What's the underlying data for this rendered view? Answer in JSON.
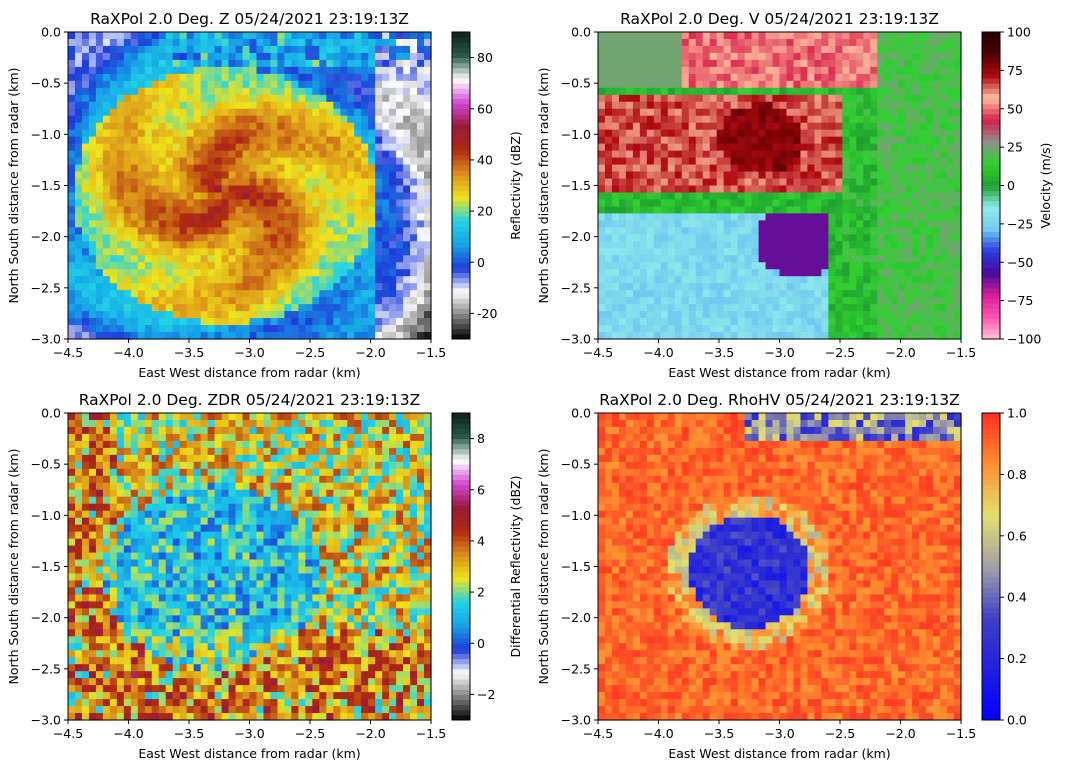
{
  "panels": [
    {
      "id": "z",
      "title": "RaXPol 2.0 Deg. Z 05/24/2021 23:19:13Z",
      "xlabel": "East West distance from radar (km)",
      "ylabel": "North South distance from radar (km)",
      "cbar_label": "Reflectivity (dBZ)",
      "cbar_range": [
        -30,
        90
      ],
      "cbar_ticks": [
        "-20",
        "0",
        "20",
        "40",
        "60",
        "80"
      ],
      "cbar_tick_values": [
        -20,
        0,
        20,
        40,
        60,
        80
      ],
      "colormap": [
        "#000000",
        "#808080",
        "#ffffff",
        "#1e3ad8",
        "#16a3e6",
        "#21d3e6",
        "#f0e31a",
        "#d9901a",
        "#b02a10",
        "#9a1a3c",
        "#d046d0",
        "#ffffff",
        "#2a5a4a",
        "#10201a"
      ]
    },
    {
      "id": "v",
      "title": "RaXPol 2.0 Deg. V 05/24/2021 23:19:13Z",
      "xlabel": "East West distance from radar (km)",
      "ylabel": "North South distance from radar (km)",
      "cbar_label": "Velocity (m/s)",
      "cbar_range": [
        -100,
        100
      ],
      "cbar_ticks": [
        "−100",
        "−75",
        "−50",
        "−25",
        "0",
        "25",
        "50",
        "75",
        "100"
      ],
      "cbar_tick_values": [
        -100,
        -75,
        -50,
        -25,
        0,
        25,
        50,
        75,
        100
      ],
      "colormap": [
        "#ffc6d8",
        "#ff56b0",
        "#d81e9a",
        "#4a0a9a",
        "#2a3ae0",
        "#6ec8f0",
        "#90ecea",
        "#20a030",
        "#30d030",
        "#909090",
        "#d8204a",
        "#ffc0a0",
        "#b00a10",
        "#500000",
        "#200000"
      ]
    },
    {
      "id": "zdr",
      "title": "RaXPol 2.0 Deg. ZDR 05/24/2021 23:19:13Z",
      "xlabel": "East West distance from radar (km)",
      "ylabel": "North South distance from radar (km)",
      "cbar_label": "Differential Reflectivity (dBZ)",
      "cbar_range": [
        -3,
        9
      ],
      "cbar_ticks": [
        "−2",
        "0",
        "2",
        "4",
        "6",
        "8"
      ],
      "cbar_tick_values": [
        -2,
        0,
        2,
        4,
        6,
        8
      ],
      "colormap": [
        "#000000",
        "#808080",
        "#ffffff",
        "#1e3ad8",
        "#16a3e6",
        "#21d3e6",
        "#f0e31a",
        "#d9901a",
        "#b02a10",
        "#9a1a3c",
        "#d046d0",
        "#ffffff",
        "#2a5a4a",
        "#10201a"
      ]
    },
    {
      "id": "rhohv",
      "title": "RaXPol 2.0 Deg. RhoHV 05/24/2021 23:19:13Z",
      "xlabel": "East West distance from radar (km)",
      "ylabel": "North South distance from radar (km)",
      "cbar_label": "",
      "cbar_range": [
        0,
        1
      ],
      "cbar_ticks": [
        "0.0",
        "0.2",
        "0.4",
        "0.6",
        "0.8",
        "1.0"
      ],
      "cbar_tick_values": [
        0,
        0.2,
        0.4,
        0.6,
        0.8,
        1.0
      ],
      "colormap": [
        "#0000ff",
        "#2020e0",
        "#4040c8",
        "#a0a0a8",
        "#e0e070",
        "#ff9030",
        "#ff3020"
      ]
    }
  ],
  "chart_data": [
    {
      "type": "heatmap",
      "title": "RaXPol 2.0 Deg. Z 05/24/2021 23:19:13Z",
      "xlabel": "East West distance from radar (km)",
      "ylabel": "North South distance from radar (km)",
      "xlim": [
        -4.5,
        -1.5
      ],
      "ylim": [
        -3.0,
        0.0
      ],
      "xticks": [
        "−4.5",
        "−4.0",
        "−3.5",
        "−3.0",
        "−2.5",
        "−2.0",
        "−1.5"
      ],
      "xtick_values": [
        -4.5,
        -4.0,
        -3.5,
        -3.0,
        -2.5,
        -2.0,
        -1.5
      ],
      "yticks": [
        "0.0",
        "−0.5",
        "−1.0",
        "−1.5",
        "−2.0",
        "−2.5",
        "−3.0"
      ],
      "ytick_values": [
        0.0,
        -0.5,
        -1.0,
        -1.5,
        -2.0,
        -2.5,
        -3.0
      ],
      "colorbar": {
        "label": "Reflectivity (dBZ)",
        "range": [
          -30,
          90
        ]
      }
    },
    {
      "type": "heatmap",
      "title": "RaXPol 2.0 Deg. V 05/24/2021 23:19:13Z",
      "xlabel": "East West distance from radar (km)",
      "ylabel": "North South distance from radar (km)",
      "xlim": [
        -4.5,
        -1.5
      ],
      "ylim": [
        -3.0,
        0.0
      ],
      "xticks": [
        "−4.5",
        "−4.0",
        "−3.5",
        "−3.0",
        "−2.5",
        "−2.0",
        "−1.5"
      ],
      "xtick_values": [
        -4.5,
        -4.0,
        -3.5,
        -3.0,
        -2.5,
        -2.0,
        -1.5
      ],
      "yticks": [
        "0.0",
        "−0.5",
        "−1.0",
        "−1.5",
        "−2.0",
        "−2.5",
        "−3.0"
      ],
      "ytick_values": [
        0.0,
        -0.5,
        -1.0,
        -1.5,
        -2.0,
        -2.5,
        -3.0
      ],
      "colorbar": {
        "label": "Velocity (m/s)",
        "range": [
          -100,
          100
        ]
      }
    },
    {
      "type": "heatmap",
      "title": "RaXPol 2.0 Deg. ZDR 05/24/2021 23:19:13Z",
      "xlabel": "East West distance from radar (km)",
      "ylabel": "North South distance from radar (km)",
      "xlim": [
        -4.5,
        -1.5
      ],
      "ylim": [
        -3.0,
        0.0
      ],
      "xticks": [
        "−4.5",
        "−4.0",
        "−3.5",
        "−3.0",
        "−2.5",
        "−2.0",
        "−1.5"
      ],
      "xtick_values": [
        -4.5,
        -4.0,
        -3.5,
        -3.0,
        -2.5,
        -2.0,
        -1.5
      ],
      "yticks": [
        "0.0",
        "−0.5",
        "−1.0",
        "−1.5",
        "−2.0",
        "−2.5",
        "−3.0"
      ],
      "ytick_values": [
        0.0,
        -0.5,
        -1.0,
        -1.5,
        -2.0,
        -2.5,
        -3.0
      ],
      "colorbar": {
        "label": "Differential Reflectivity (dBZ)",
        "range": [
          -3,
          9
        ]
      }
    },
    {
      "type": "heatmap",
      "title": "RaXPol 2.0 Deg. RhoHV 05/24/2021 23:19:13Z",
      "xlabel": "East West distance from radar (km)",
      "ylabel": "North South distance from radar (km)",
      "xlim": [
        -4.5,
        -1.5
      ],
      "ylim": [
        -3.0,
        0.0
      ],
      "xticks": [
        "−4.5",
        "−4.0",
        "−3.5",
        "−3.0",
        "−2.5",
        "−2.0",
        "−1.5"
      ],
      "xtick_values": [
        -4.5,
        -4.0,
        -3.5,
        -3.0,
        -2.5,
        -2.0,
        -1.5
      ],
      "yticks": [
        "0.0",
        "−0.5",
        "−1.0",
        "−1.5",
        "−2.0",
        "−2.5",
        "−3.0"
      ],
      "ytick_values": [
        0.0,
        -0.5,
        -1.0,
        -1.5,
        -2.0,
        -2.5,
        -3.0
      ],
      "colorbar": {
        "label": "",
        "range": [
          0,
          1
        ]
      }
    }
  ]
}
